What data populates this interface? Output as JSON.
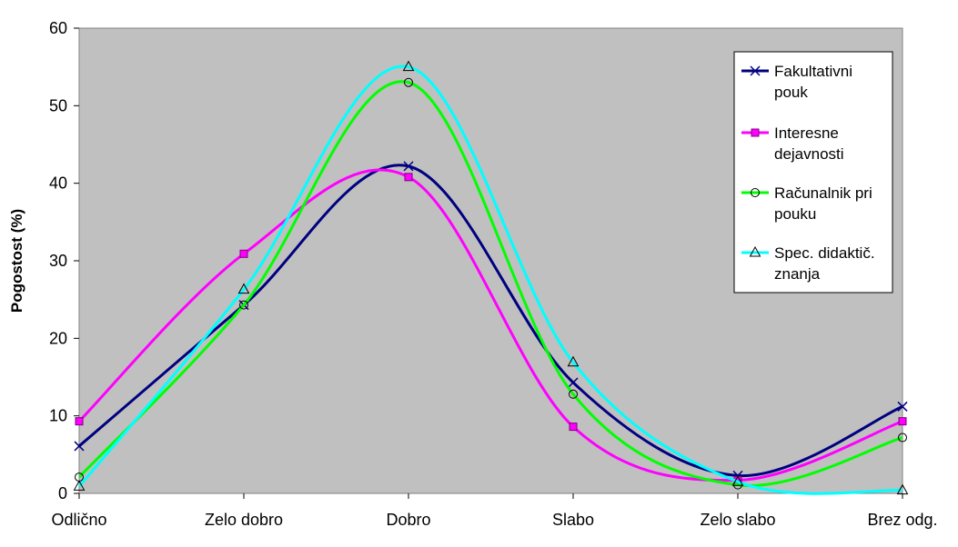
{
  "chart_data": {
    "type": "line",
    "title": "",
    "xlabel": "",
    "ylabel": "Pogostost (%)",
    "categories": [
      "Odlično",
      "Zelo dobro",
      "Dobro",
      "Slabo",
      "Zelo slabo",
      "Brez odg."
    ],
    "ylim": [
      0,
      60
    ],
    "yticks": [
      "0",
      "10",
      "20",
      "30",
      "40",
      "50",
      "60"
    ],
    "grid": false,
    "smooth": true,
    "legend_position": "top-right",
    "background_color": "#c0c0c0",
    "series": [
      {
        "name_lines": [
          "Fakultativni",
          "pouk"
        ],
        "color": "#000080",
        "marker": "x",
        "values": [
          6.1,
          24.3,
          42.2,
          14.3,
          2.3,
          11.2
        ]
      },
      {
        "name_lines": [
          "Interesne",
          "dejavnosti"
        ],
        "color": "#ff00ff",
        "marker": "square",
        "values": [
          9.3,
          30.9,
          40.8,
          8.6,
          1.7,
          9.3
        ]
      },
      {
        "name_lines": [
          "Računalnik pri",
          "pouku"
        ],
        "color": "#00ff00",
        "marker": "circle",
        "values": [
          2.1,
          24.3,
          53.0,
          12.8,
          1.1,
          7.2
        ]
      },
      {
        "name_lines": [
          "Spec. didaktič.",
          "znanja"
        ],
        "color": "#00ffff",
        "marker": "triangle",
        "values": [
          0.9,
          26.3,
          55.0,
          16.9,
          1.5,
          0.4
        ]
      }
    ]
  }
}
